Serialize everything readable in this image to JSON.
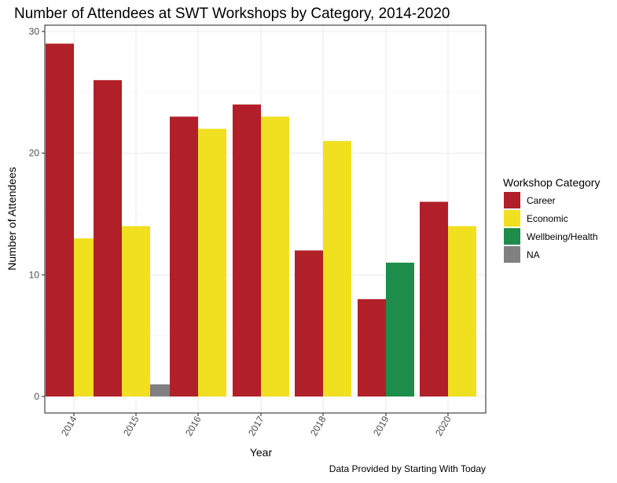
{
  "chart_data": {
    "type": "bar",
    "title": "Number of Attendees at SWT Workshops by Category, 2014-2020",
    "xlabel": "Year",
    "ylabel": "Number of Attendees",
    "caption": "Data Provided by Starting With Today",
    "categories": [
      "2014",
      "2015",
      "2016",
      "2017",
      "2018",
      "2019",
      "2020"
    ],
    "ylim": [
      0,
      30
    ],
    "yticks": [
      0,
      10,
      20,
      30
    ],
    "grid": true,
    "legend": {
      "title": "Workshop Category",
      "placement": "right"
    },
    "series": [
      {
        "name": "Career",
        "color": "#b11f29",
        "values": [
          29,
          26,
          23,
          24,
          12,
          8,
          16
        ]
      },
      {
        "name": "Economic",
        "color": "#f0e020",
        "values": [
          13,
          14,
          22,
          23,
          21,
          null,
          14
        ]
      },
      {
        "name": "Wellbeing/Health",
        "color": "#1e8c4a",
        "values": [
          null,
          null,
          null,
          null,
          null,
          11,
          null
        ]
      },
      {
        "name": "NA",
        "color": "#808080",
        "values": [
          null,
          1,
          null,
          null,
          null,
          null,
          null
        ]
      }
    ]
  }
}
